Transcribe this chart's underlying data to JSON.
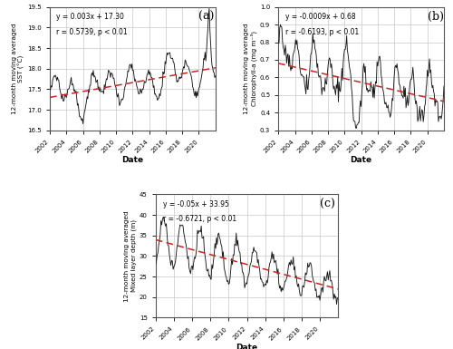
{
  "panel_a": {
    "label": "(a)",
    "ylabel": "12-month moving averaged\nSST (°C)",
    "xlabel": "Date",
    "ylim": [
      16.5,
      19.5
    ],
    "yticks": [
      16.5,
      17.0,
      17.5,
      18.0,
      18.5,
      19.0,
      19.5
    ],
    "xlim": [
      2002,
      2022
    ],
    "xticks": [
      2002,
      2004,
      2006,
      2008,
      2010,
      2012,
      2014,
      2016,
      2018,
      2020
    ],
    "eq_text": "y = 0.003x + 17.30",
    "r_text": "r = 0.5739, p < 0.01",
    "trend_slope": 0.003,
    "trend_intercept_at_2002": 17.3,
    "line_color": "#1a1a1a",
    "trend_color": "#cc2222"
  },
  "panel_b": {
    "label": "(b)",
    "ylabel": "12-month moving averaged\nChlorophyll-a (mg m⁻³)",
    "xlabel": "Date",
    "ylim": [
      0.3,
      1.0
    ],
    "yticks": [
      0.3,
      0.4,
      0.5,
      0.6,
      0.7,
      0.8,
      0.9,
      1.0
    ],
    "xlim": [
      2002,
      2022
    ],
    "xticks": [
      2002,
      2004,
      2006,
      2008,
      2010,
      2012,
      2014,
      2016,
      2018,
      2020
    ],
    "eq_text": "y = -0.0009x + 0.68",
    "r_text": "r = -0.6193, p < 0.01",
    "trend_slope": -0.0009,
    "trend_intercept_at_2002": 0.68,
    "line_color": "#1a1a1a",
    "trend_color": "#cc2222"
  },
  "panel_c": {
    "label": "(c)",
    "ylabel": "12-month moving averaged\nMixed layer depth (m)",
    "xlabel": "Date",
    "ylim": [
      15,
      45
    ],
    "yticks": [
      15,
      20,
      25,
      30,
      35,
      40,
      45
    ],
    "xlim": [
      2002,
      2022
    ],
    "xticks": [
      2002,
      2004,
      2006,
      2008,
      2010,
      2012,
      2014,
      2016,
      2018,
      2020
    ],
    "eq_text": "y = -0.05x + 33.95",
    "r_text": "r = -0.6721, p < 0.01",
    "trend_slope": -0.05,
    "trend_intercept_at_2002": 33.95,
    "line_color": "#1a1a1a",
    "trend_color": "#cc2222"
  },
  "bg_color": "#ffffff",
  "grid_color": "#c8c8c8"
}
